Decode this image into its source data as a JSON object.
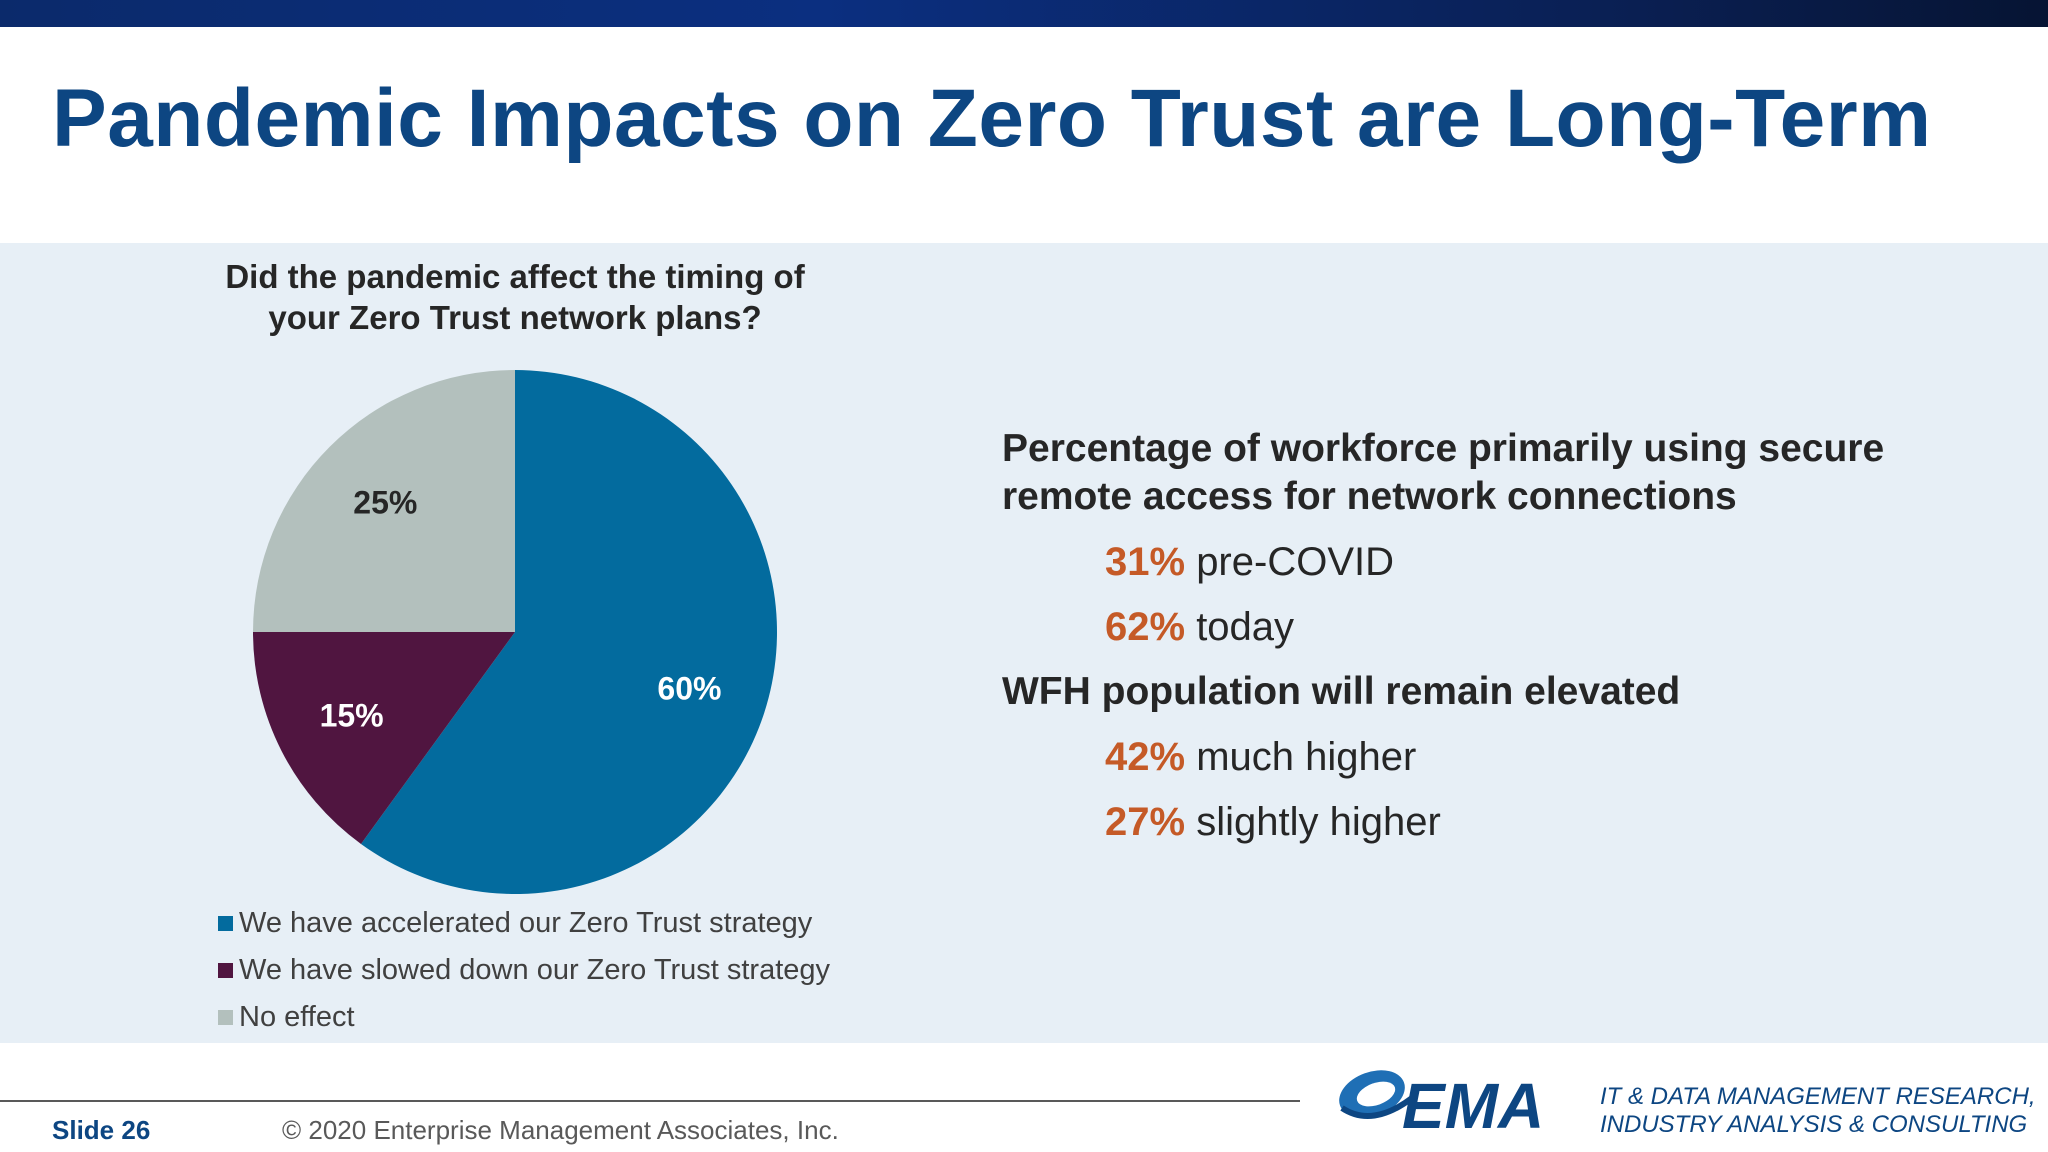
{
  "slide": {
    "title": "Pandemic Impacts on Zero Trust are Long-Term",
    "footer": {
      "slide_number": "Slide 26",
      "copyright": "© 2020 Enterprise Management Associates, Inc.",
      "logo_text": "EMA",
      "tagline_line1": "IT & DATA MANAGEMENT RESEARCH,",
      "tagline_line2": "INDUSTRY ANALYSIS & CONSULTING"
    },
    "stats": {
      "heading1_line1": "Percentage of workforce primarily using secure",
      "heading1_line2": "remote access for network connections",
      "rows1": [
        {
          "pct": "31%",
          "label": "pre-COVID"
        },
        {
          "pct": "62%",
          "label": "today"
        }
      ],
      "heading2": "WFH population will remain elevated",
      "rows2": [
        {
          "pct": "42%",
          "label": "much higher"
        },
        {
          "pct": "27%",
          "label": "slightly higher"
        }
      ],
      "accent_color": "#c55a27"
    }
  },
  "chart_data": {
    "type": "pie",
    "title_line1": "Did the pandemic affect the timing of",
    "title_line2": "your Zero Trust network plans?",
    "slices": [
      {
        "label": "We have accelerated our Zero Trust strategy",
        "value": 60,
        "display": "60%",
        "color": "#036b9e",
        "label_color": "#ffffff"
      },
      {
        "label": "We have slowed down our Zero Trust strategy",
        "value": 15,
        "display": "15%",
        "color": "#501540",
        "label_color": "#ffffff"
      },
      {
        "label": "No effect",
        "value": 25,
        "display": "25%",
        "color": "#b3c0bd",
        "label_color": "#262626"
      }
    ],
    "legend_placement": "bottom"
  }
}
